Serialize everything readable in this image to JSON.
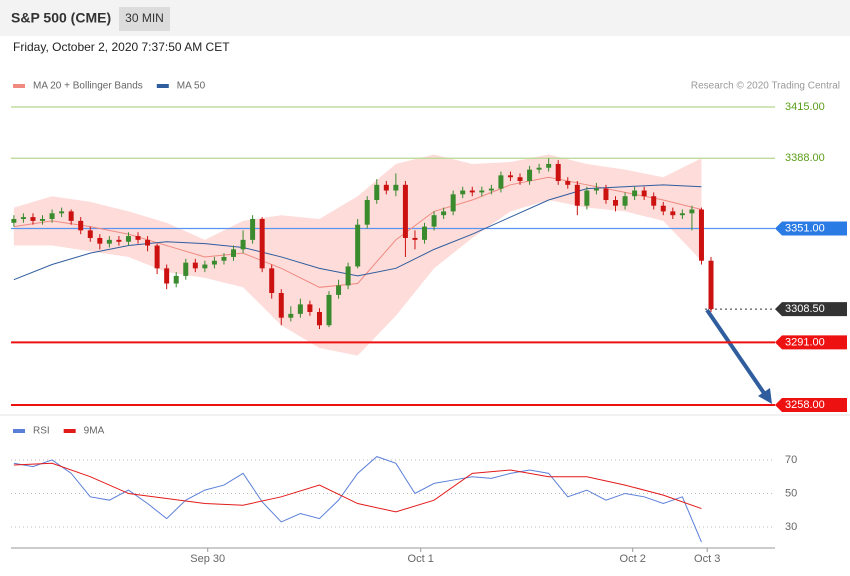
{
  "header": {
    "title": "S&P 500 (CME)",
    "interval": "30 MIN",
    "timestamp": "Friday, October 2, 2020 7:37:50 AM CET",
    "credit": "Research © 2020 Trading Central"
  },
  "chart_data": [
    {
      "type": "candlestick",
      "up_color": "#3a8a2e",
      "down_color": "#cc1111",
      "xlim": [
        -0.3,
        79.7
      ],
      "ylim": [
        3254.3,
        3420.8
      ],
      "candles": {
        "open": [
          3354,
          3356,
          3357,
          3355,
          3356,
          3359,
          3360,
          3355,
          3350,
          3346,
          3343,
          3345,
          3344,
          3347,
          3345,
          3342,
          3330,
          3322,
          3326,
          3333,
          3330,
          3332,
          3334,
          3336,
          3340,
          3345,
          3356,
          3330,
          3317,
          3304,
          3306,
          3311,
          3307,
          3300,
          3316,
          3321,
          3331,
          3353,
          3366,
          3374,
          3371,
          3374,
          3346,
          3345,
          3352,
          3358,
          3360,
          3369,
          3371,
          3370,
          3371,
          3372,
          3379,
          3378,
          3376,
          3382,
          3383,
          3385,
          3376,
          3374,
          3363,
          3371,
          3372,
          3366,
          3363,
          3368,
          3371,
          3368,
          3363,
          3360,
          3358,
          3359,
          3361,
          3334
        ],
        "high": [
          3358,
          3359,
          3359,
          3358,
          3361,
          3362,
          3361,
          3357,
          3352,
          3348,
          3347,
          3347,
          3349,
          3349,
          3347,
          3343,
          3332,
          3328,
          3335,
          3335,
          3334,
          3336,
          3338,
          3342,
          3350,
          3358,
          3357,
          3332,
          3319,
          3310,
          3314,
          3313,
          3309,
          3318,
          3324,
          3333,
          3356,
          3368,
          3377,
          3376,
          3380,
          3376,
          3350,
          3354,
          3360,
          3362,
          3371,
          3373,
          3373,
          3373,
          3374,
          3381,
          3381,
          3380,
          3384,
          3385,
          3388,
          3387,
          3378,
          3376,
          3373,
          3375,
          3374,
          3368,
          3370,
          3373,
          3373,
          3370,
          3365,
          3362,
          3361,
          3363,
          3362,
          3336
        ],
        "low": [
          3352,
          3354,
          3353,
          3353,
          3354,
          3357,
          3353,
          3348,
          3344,
          3340,
          3341,
          3342,
          3342,
          3343,
          3339,
          3327,
          3319,
          3320,
          3324,
          3328,
          3328,
          3330,
          3332,
          3334,
          3338,
          3343,
          3328,
          3314,
          3300,
          3302,
          3304,
          3305,
          3298,
          3299,
          3314,
          3319,
          3330,
          3351,
          3364,
          3369,
          3368,
          3336,
          3340,
          3343,
          3350,
          3356,
          3358,
          3367,
          3368,
          3368,
          3369,
          3370,
          3376,
          3374,
          3374,
          3380,
          3381,
          3374,
          3372,
          3358,
          3361,
          3369,
          3364,
          3360,
          3361,
          3366,
          3366,
          3361,
          3358,
          3356,
          3356,
          3350,
          3332,
          3307
        ],
        "close": [
          3356,
          3357,
          3355,
          3356,
          3359,
          3360,
          3355,
          3350,
          3346,
          3343,
          3345,
          3344,
          3347,
          3345,
          3342,
          3330,
          3322,
          3326,
          3333,
          3330,
          3332,
          3334,
          3336,
          3340,
          3345,
          3356,
          3330,
          3317,
          3304,
          3306,
          3311,
          3307,
          3300,
          3316,
          3321,
          3331,
          3353,
          3366,
          3374,
          3371,
          3374,
          3346,
          3345,
          3352,
          3358,
          3360,
          3369,
          3371,
          3370,
          3371,
          3372,
          3379,
          3378,
          3376,
          3382,
          3383,
          3385,
          3376,
          3374,
          3363,
          3371,
          3372,
          3366,
          3363,
          3368,
          3371,
          3368,
          3363,
          3360,
          3358,
          3359,
          3361,
          3334,
          3308.5
        ]
      },
      "indicators": [
        {
          "name": "MA 20 + Bollinger Bands",
          "color": "#f08a80",
          "band_color": "#fddcda",
          "x": [
            0,
            4,
            8,
            12,
            16,
            20,
            24,
            28,
            32,
            36,
            40,
            44,
            48,
            52,
            56,
            60,
            64,
            68,
            72
          ],
          "values": [
            3352,
            3355,
            3352,
            3348,
            3342,
            3336,
            3338,
            3330,
            3320,
            3322,
            3345,
            3360,
            3366,
            3374,
            3378,
            3374,
            3370,
            3366,
            3361
          ],
          "upper": [
            3362,
            3368,
            3365,
            3360,
            3354,
            3345,
            3355,
            3358,
            3356,
            3368,
            3385,
            3390,
            3385,
            3386,
            3390,
            3385,
            3382,
            3378,
            3388
          ],
          "lower": [
            3342,
            3342,
            3339,
            3336,
            3328,
            3325,
            3320,
            3300,
            3288,
            3284,
            3305,
            3330,
            3346,
            3360,
            3366,
            3362,
            3360,
            3355,
            3334
          ]
        },
        {
          "name": "MA 50",
          "color": "#2f5d9e",
          "x": [
            0,
            4,
            8,
            12,
            16,
            20,
            24,
            28,
            32,
            36,
            40,
            44,
            48,
            52,
            56,
            60,
            64,
            68,
            72
          ],
          "values": [
            3324,
            3332,
            3338,
            3342,
            3344,
            3343,
            3341,
            3336,
            3330,
            3326,
            3330,
            3340,
            3348,
            3357,
            3366,
            3372,
            3373,
            3374,
            3373
          ]
        }
      ],
      "levels": [
        {
          "value": 3415,
          "label": "3415.00",
          "color": "#5a9e1a",
          "line_color": "#b5d88f",
          "label_box": false,
          "line_style": "solid"
        },
        {
          "value": 3388,
          "label": "3388.00",
          "color": "#5a9e1a",
          "line_color": "#b5d88f",
          "label_box": false,
          "line_style": "solid"
        },
        {
          "value": 3351,
          "label": "3351.00",
          "color": "#2b7be4",
          "line_color": "#5b95f0",
          "label_box": true,
          "line_style": "solid"
        },
        {
          "value": 3308.5,
          "label": "3308.50",
          "color": "#333333",
          "line_color": "#333333",
          "label_box": true,
          "line_style": "dotted"
        },
        {
          "value": 3291,
          "label": "3291.00",
          "color": "#ee1111",
          "line_color": "#ee1111",
          "label_box": true,
          "line_style": "solid"
        },
        {
          "value": 3258,
          "label": "3258.00",
          "color": "#ee1111",
          "line_color": "#ee1111",
          "label_box": true,
          "line_style": "solid"
        }
      ]
    },
    {
      "type": "line",
      "xlim": [
        -0.3,
        79.7
      ],
      "ylim": [
        19.25,
        81.9
      ],
      "yticks": [
        70,
        50,
        30
      ],
      "grid": true,
      "xticks": [
        {
          "value": 20.3,
          "label": "Sep 30"
        },
        {
          "value": 42.6,
          "label": "Oct 1"
        },
        {
          "value": 64.8,
          "label": "Oct 2"
        },
        {
          "value": 72.6,
          "label": "Oct 3"
        }
      ],
      "series": [
        {
          "name": "RSI",
          "color": "#5b7fd8",
          "x": [
            0,
            2,
            4,
            6,
            8,
            10,
            12,
            14,
            16,
            18,
            20,
            22,
            24,
            26,
            28,
            30,
            32,
            34,
            36,
            38,
            40,
            42,
            44,
            46,
            48,
            50,
            52,
            54,
            56,
            58,
            60,
            62,
            64,
            66,
            68,
            70,
            72
          ],
          "values": [
            68,
            66,
            70,
            62,
            48,
            46,
            52,
            44,
            35,
            46,
            52,
            55,
            62,
            45,
            33,
            38,
            35,
            46,
            62,
            72,
            68,
            50,
            56,
            58,
            60,
            59,
            62,
            64,
            62,
            48,
            52,
            46,
            50,
            48,
            44,
            48,
            21
          ]
        },
        {
          "name": "9MA",
          "color": "#e31a1a",
          "x": [
            0,
            4,
            8,
            12,
            16,
            20,
            24,
            28,
            32,
            36,
            40,
            44,
            48,
            52,
            56,
            60,
            64,
            68,
            72
          ],
          "values": [
            67,
            68,
            60,
            50,
            47,
            44,
            43,
            48,
            55,
            44,
            39,
            46,
            62,
            64,
            60,
            60,
            55,
            49,
            41
          ]
        }
      ]
    }
  ]
}
